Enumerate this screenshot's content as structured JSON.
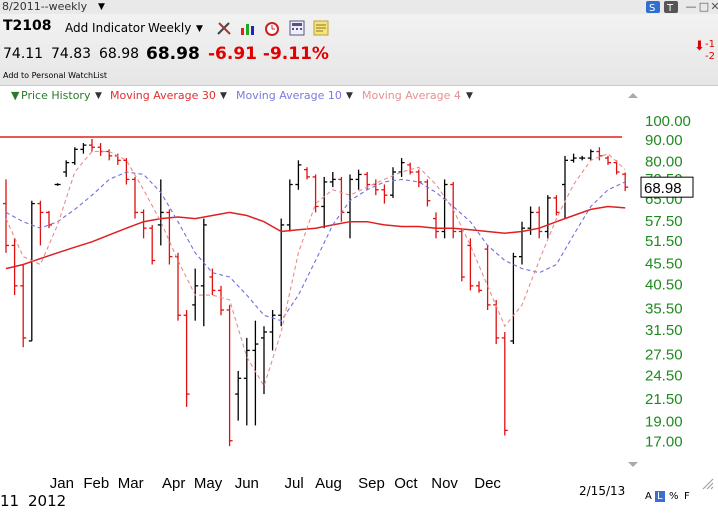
{
  "window": {
    "title": "8/2011--weekly",
    "buttons": [
      "—",
      "□",
      "✕"
    ]
  },
  "header": {
    "symbol": "T2108",
    "add_indicator": "Add Indicator",
    "period": "Weekly",
    "quote_values": [
      "74.11",
      "74.83",
      "68.98"
    ],
    "last": "68.98",
    "change": "-6.91",
    "change_pct": "-9.11%",
    "watchlist": "Add to Personal WatchList",
    "alert_lines": [
      "-1",
      "-2"
    ],
    "icons": [
      "tools-icon",
      "bar-chart-icon",
      "alarm-clock-icon",
      "calculator-icon",
      "note-icon"
    ],
    "colors": {
      "down": "#e00000"
    }
  },
  "legend": [
    {
      "label": "Price History",
      "color": "#2a7a2a"
    },
    {
      "label": "Moving Average 30",
      "color": "#e03030"
    },
    {
      "label": "Moving Average 10",
      "color": "#7a7ae0"
    },
    {
      "label": "Moving Average 4",
      "color": "#e89090"
    }
  ],
  "footer": {
    "year_left": "11",
    "year": "2012",
    "date": "2/15/13",
    "scale_buttons": [
      "A",
      "L",
      "%",
      "F"
    ]
  },
  "chart_data": {
    "type": "bar",
    "subtype": "weekly OHLC price bars with moving averages",
    "scale": "log",
    "ylim": [
      15.8,
      108
    ],
    "y_ticks": [
      "100.00",
      "90.00",
      "80.00",
      "72.50",
      "65.00",
      "57.50",
      "51.50",
      "45.50",
      "40.50",
      "35.50",
      "31.50",
      "27.50",
      "24.50",
      "21.50",
      "19.00",
      "17.00"
    ],
    "y_tick_values": [
      100,
      90,
      80,
      72.5,
      65,
      57.5,
      51.5,
      45.5,
      40.5,
      35.5,
      31.5,
      27.5,
      24.5,
      21.5,
      19,
      17
    ],
    "x_ticks": [
      "Jan",
      "Feb",
      "Mar",
      "Apr",
      "May",
      "Jun",
      "Jul",
      "Aug",
      "Sep",
      "Oct",
      "Nov",
      "Dec"
    ],
    "x_tick_weeks": [
      6.5,
      10.5,
      14.5,
      19.5,
      23.5,
      28.0,
      33.5,
      37.5,
      42.5,
      46.5,
      51.0,
      56.0
    ],
    "current_value": "68.98",
    "resistance_level": 91,
    "bars": [
      {
        "w": 0,
        "o": 63,
        "h": 72,
        "l": 48,
        "c": 50
      },
      {
        "w": 1,
        "o": 50,
        "h": 52,
        "l": 38,
        "c": 40
      },
      {
        "w": 2,
        "o": 40,
        "h": 45,
        "l": 28.5,
        "c": 30
      },
      {
        "w": 3,
        "o": 29.5,
        "h": 64,
        "l": 29.5,
        "c": 63
      },
      {
        "w": 4,
        "o": 63,
        "h": 64,
        "l": 50,
        "c": 60
      },
      {
        "w": 5,
        "o": 60,
        "h": 60.5,
        "l": 55,
        "c": 56
      },
      {
        "w": 6,
        "o": 70,
        "h": 70.5,
        "l": 69.5,
        "c": 70
      },
      {
        "w": 7,
        "o": 75,
        "h": 80,
        "l": 73,
        "c": 79
      },
      {
        "w": 8,
        "o": 79,
        "h": 86,
        "l": 78,
        "c": 85
      },
      {
        "w": 9,
        "o": 85,
        "h": 88,
        "l": 83,
        "c": 87
      },
      {
        "w": 10,
        "o": 87,
        "h": 90,
        "l": 84,
        "c": 86
      },
      {
        "w": 11,
        "o": 86,
        "h": 88,
        "l": 82,
        "c": 84
      },
      {
        "w": 12,
        "o": 84,
        "h": 85,
        "l": 80,
        "c": 82
      },
      {
        "w": 13,
        "o": 82,
        "h": 83,
        "l": 78,
        "c": 80
      },
      {
        "w": 14,
        "o": 80,
        "h": 81,
        "l": 70,
        "c": 72
      },
      {
        "w": 15,
        "o": 72,
        "h": 73,
        "l": 58,
        "c": 60
      },
      {
        "w": 16,
        "o": 60,
        "h": 61,
        "l": 52,
        "c": 55
      },
      {
        "w": 17,
        "o": 55,
        "h": 56,
        "l": 45,
        "c": 46
      },
      {
        "w": 18,
        "o": 56,
        "h": 72,
        "l": 50,
        "c": 60
      },
      {
        "w": 19,
        "o": 60,
        "h": 61,
        "l": 45,
        "c": 47
      },
      {
        "w": 20,
        "o": 47,
        "h": 48,
        "l": 33,
        "c": 34
      },
      {
        "w": 21,
        "o": 34,
        "h": 35,
        "l": 20.5,
        "c": 22
      },
      {
        "w": 22,
        "o": 36,
        "h": 44,
        "l": 33,
        "c": 40
      },
      {
        "w": 23,
        "o": 40,
        "h": 58,
        "l": 32,
        "c": 56
      },
      {
        "w": 24,
        "o": 42,
        "h": 44,
        "l": 38,
        "c": 39
      },
      {
        "w": 25,
        "o": 39,
        "h": 40,
        "l": 34,
        "c": 35
      },
      {
        "w": 26,
        "o": 35,
        "h": 36,
        "l": 16.5,
        "c": 17
      },
      {
        "w": 27,
        "o": 22,
        "h": 25,
        "l": 19,
        "c": 24
      },
      {
        "w": 28,
        "o": 24,
        "h": 30,
        "l": 18.5,
        "c": 28
      },
      {
        "w": 29,
        "o": 28,
        "h": 33,
        "l": 18.5,
        "c": 29
      },
      {
        "w": 30,
        "o": 30,
        "h": 32,
        "l": 22,
        "c": 31
      },
      {
        "w": 31,
        "o": 31,
        "h": 35,
        "l": 28,
        "c": 34
      },
      {
        "w": 32,
        "o": 34,
        "h": 58,
        "l": 32,
        "c": 56
      },
      {
        "w": 33,
        "o": 56,
        "h": 72,
        "l": 54,
        "c": 70
      },
      {
        "w": 34,
        "o": 70,
        "h": 80,
        "l": 68,
        "c": 78
      },
      {
        "w": 35,
        "o": 76,
        "h": 77,
        "l": 72,
        "c": 73
      },
      {
        "w": 36,
        "o": 73,
        "h": 74,
        "l": 60,
        "c": 62
      },
      {
        "w": 37,
        "o": 62,
        "h": 73,
        "l": 55,
        "c": 71
      },
      {
        "w": 38,
        "o": 71,
        "h": 75,
        "l": 69,
        "c": 72
      },
      {
        "w": 39,
        "o": 72,
        "h": 73,
        "l": 57,
        "c": 60
      },
      {
        "w": 40,
        "o": 60,
        "h": 74,
        "l": 52,
        "c": 72
      },
      {
        "w": 41,
        "o": 72,
        "h": 76,
        "l": 68,
        "c": 74
      },
      {
        "w": 42,
        "o": 74,
        "h": 75,
        "l": 68,
        "c": 70
      },
      {
        "w": 43,
        "o": 70,
        "h": 72,
        "l": 66,
        "c": 68
      },
      {
        "w": 44,
        "o": 68,
        "h": 70,
        "l": 63,
        "c": 66
      },
      {
        "w": 45,
        "o": 66,
        "h": 77,
        "l": 65,
        "c": 75
      },
      {
        "w": 46,
        "o": 75,
        "h": 81,
        "l": 73,
        "c": 79
      },
      {
        "w": 47,
        "o": 78,
        "h": 79,
        "l": 74,
        "c": 75
      },
      {
        "w": 48,
        "o": 75,
        "h": 76,
        "l": 69,
        "c": 71
      },
      {
        "w": 49,
        "o": 71,
        "h": 72,
        "l": 62,
        "c": 64
      },
      {
        "w": 50,
        "o": 58,
        "h": 60,
        "l": 52,
        "c": 54
      },
      {
        "w": 51,
        "o": 54,
        "h": 72,
        "l": 52,
        "c": 70
      },
      {
        "w": 52,
        "o": 70,
        "h": 71,
        "l": 52,
        "c": 54
      },
      {
        "w": 53,
        "o": 54,
        "h": 55,
        "l": 41,
        "c": 42
      },
      {
        "w": 54,
        "o": 50,
        "h": 52,
        "l": 39,
        "c": 40
      },
      {
        "w": 55,
        "o": 40,
        "h": 41,
        "l": 38.5,
        "c": 39
      },
      {
        "w": 56,
        "o": 49,
        "h": 50,
        "l": 35,
        "c": 36
      },
      {
        "w": 57,
        "o": 36,
        "h": 37,
        "l": 29,
        "c": 30
      },
      {
        "w": 58,
        "o": 30,
        "h": 31,
        "l": 17.5,
        "c": 18
      },
      {
        "w": 59,
        "o": 29.5,
        "h": 48,
        "l": 29,
        "c": 47
      },
      {
        "w": 60,
        "o": 47,
        "h": 57,
        "l": 45,
        "c": 55
      },
      {
        "w": 61,
        "o": 55,
        "h": 62,
        "l": 53,
        "c": 60
      },
      {
        "w": 62,
        "o": 60,
        "h": 62,
        "l": 52,
        "c": 54
      },
      {
        "w": 63,
        "o": 54,
        "h": 66,
        "l": 52,
        "c": 65
      },
      {
        "w": 64,
        "o": 65,
        "h": 66,
        "l": 59,
        "c": 60
      },
      {
        "w": 65,
        "o": 70,
        "h": 82,
        "l": 58,
        "c": 80
      },
      {
        "w": 66,
        "o": 80,
        "h": 83,
        "l": 79,
        "c": 81
      },
      {
        "w": 67,
        "o": 81,
        "h": 82,
        "l": 80,
        "c": 81
      },
      {
        "w": 68,
        "o": 81,
        "h": 85,
        "l": 80,
        "c": 84
      },
      {
        "w": 69,
        "o": 84,
        "h": 86,
        "l": 80,
        "c": 82
      },
      {
        "w": 70,
        "o": 81,
        "h": 82,
        "l": 78,
        "c": 79
      },
      {
        "w": 71,
        "o": 79,
        "h": 80,
        "l": 74,
        "c": 75
      },
      {
        "w": 72,
        "o": 74.1,
        "h": 74.8,
        "l": 67.5,
        "c": 68.98
      }
    ],
    "series": [
      {
        "name": "Moving Average 30",
        "style": "solid",
        "values": [
          [
            0,
            44
          ],
          [
            2,
            45
          ],
          [
            4,
            46.5
          ],
          [
            6,
            48
          ],
          [
            8,
            49.5
          ],
          [
            10,
            51
          ],
          [
            12,
            53
          ],
          [
            14,
            55
          ],
          [
            16,
            57
          ],
          [
            18,
            58
          ],
          [
            20,
            58.5
          ],
          [
            22,
            58
          ],
          [
            24,
            59
          ],
          [
            26,
            60
          ],
          [
            28,
            59
          ],
          [
            30,
            57
          ],
          [
            32,
            54
          ],
          [
            34,
            54.5
          ],
          [
            36,
            55
          ],
          [
            38,
            56
          ],
          [
            40,
            57
          ],
          [
            42,
            57
          ],
          [
            44,
            56
          ],
          [
            46,
            55.5
          ],
          [
            48,
            55.5
          ],
          [
            50,
            55
          ],
          [
            52,
            55
          ],
          [
            54,
            54.5
          ],
          [
            56,
            54
          ],
          [
            58,
            53.5
          ],
          [
            60,
            54
          ],
          [
            62,
            55
          ],
          [
            64,
            57
          ],
          [
            66,
            59
          ],
          [
            68,
            61
          ],
          [
            70,
            62
          ],
          [
            72,
            61.5
          ]
        ]
      },
      {
        "name": "Moving Average 10",
        "style": "dashed",
        "values": [
          [
            0,
            60
          ],
          [
            2,
            57
          ],
          [
            4,
            55
          ],
          [
            6,
            57
          ],
          [
            8,
            61
          ],
          [
            10,
            66
          ],
          [
            12,
            72
          ],
          [
            14,
            75
          ],
          [
            16,
            74
          ],
          [
            18,
            67
          ],
          [
            20,
            57
          ],
          [
            22,
            48
          ],
          [
            24,
            43
          ],
          [
            26,
            42
          ],
          [
            28,
            38
          ],
          [
            30,
            34
          ],
          [
            32,
            33
          ],
          [
            34,
            38
          ],
          [
            36,
            46
          ],
          [
            38,
            56
          ],
          [
            40,
            64
          ],
          [
            42,
            68
          ],
          [
            44,
            71
          ],
          [
            46,
            72
          ],
          [
            48,
            71
          ],
          [
            50,
            67
          ],
          [
            52,
            62
          ],
          [
            54,
            57
          ],
          [
            56,
            50
          ],
          [
            58,
            46
          ],
          [
            60,
            44
          ],
          [
            62,
            43
          ],
          [
            64,
            45
          ],
          [
            66,
            53
          ],
          [
            68,
            62
          ],
          [
            70,
            68
          ],
          [
            72,
            71
          ]
        ]
      },
      {
        "name": "Moving Average 4",
        "style": "dashed",
        "values": [
          [
            0,
            58
          ],
          [
            2,
            47
          ],
          [
            4,
            45
          ],
          [
            6,
            56
          ],
          [
            8,
            75
          ],
          [
            10,
            84
          ],
          [
            12,
            84
          ],
          [
            14,
            80
          ],
          [
            16,
            68
          ],
          [
            18,
            57
          ],
          [
            20,
            46
          ],
          [
            22,
            38
          ],
          [
            24,
            38
          ],
          [
            26,
            37
          ],
          [
            28,
            27
          ],
          [
            30,
            23
          ],
          [
            32,
            31
          ],
          [
            34,
            48
          ],
          [
            36,
            63
          ],
          [
            38,
            68
          ],
          [
            40,
            66
          ],
          [
            42,
            69
          ],
          [
            44,
            72
          ],
          [
            46,
            75
          ],
          [
            48,
            77
          ],
          [
            50,
            70
          ],
          [
            52,
            61
          ],
          [
            54,
            50
          ],
          [
            56,
            40
          ],
          [
            58,
            32
          ],
          [
            60,
            36
          ],
          [
            62,
            46
          ],
          [
            64,
            58
          ],
          [
            66,
            70
          ],
          [
            68,
            80
          ],
          [
            70,
            83
          ],
          [
            72,
            76
          ]
        ]
      }
    ]
  }
}
